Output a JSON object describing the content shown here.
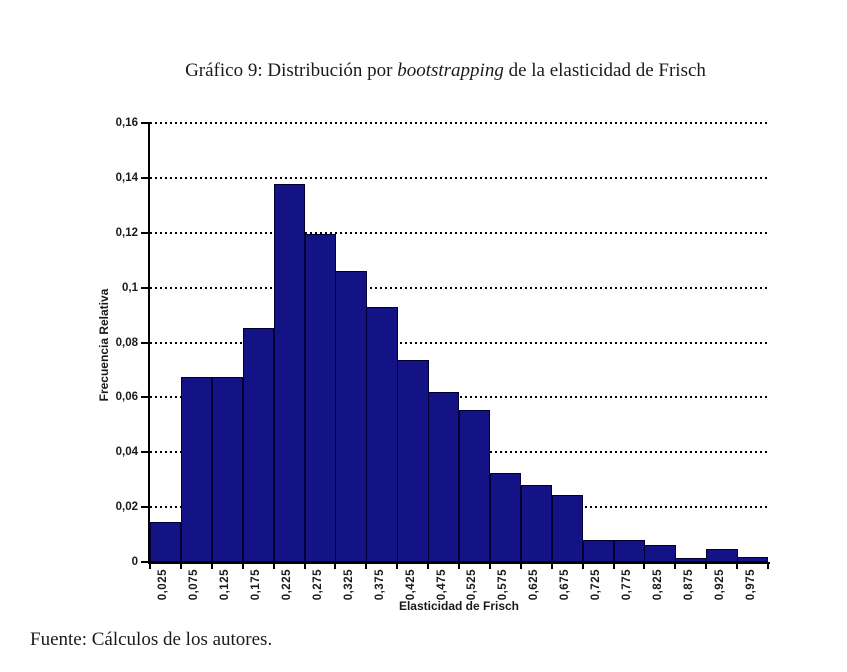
{
  "figure": {
    "title_prefix": "Gráfico 9: Distribución por ",
    "title_italic": "bootstrapping",
    "title_suffix": " de la elasticidad de Frisch",
    "source_note": "Fuente: Cálculos de los autores."
  },
  "chart_data": {
    "type": "bar",
    "subtype": "histogram",
    "title": "Gráfico 9: Distribución por bootstrapping de la elasticidad de Frisch",
    "xlabel": "Elasticidad de Frisch",
    "ylabel": "Frecuencia Relativa",
    "categories": [
      "0,025",
      "0,075",
      "0,125",
      "0,175",
      "0,225",
      "0,275",
      "0,325",
      "0,375",
      "0,425",
      "0,475",
      "0,525",
      "0,575",
      "0,625",
      "0,675",
      "0,725",
      "0,775",
      "0,825",
      "0,875",
      "0,925",
      "0,975"
    ],
    "values": [
      0.0147,
      0.0675,
      0.0675,
      0.0853,
      0.1376,
      0.1197,
      0.1062,
      0.0928,
      0.0735,
      0.062,
      0.0555,
      0.0324,
      0.0279,
      0.0245,
      0.008,
      0.008,
      0.0063,
      0.0016,
      0.0049,
      0.0018
    ],
    "ylim": [
      0,
      0.16
    ],
    "ytick_step": 0.02,
    "ytick_labels": [
      "0",
      "0,02",
      "0,04",
      "0,06",
      "0,08",
      "0,1",
      "0,12",
      "0,14",
      "0,16"
    ],
    "grid": "horizontal-dotted",
    "legend": "none",
    "bar_color": "#131385",
    "bar_border_color": "#000030",
    "axis_color": "#000000"
  }
}
